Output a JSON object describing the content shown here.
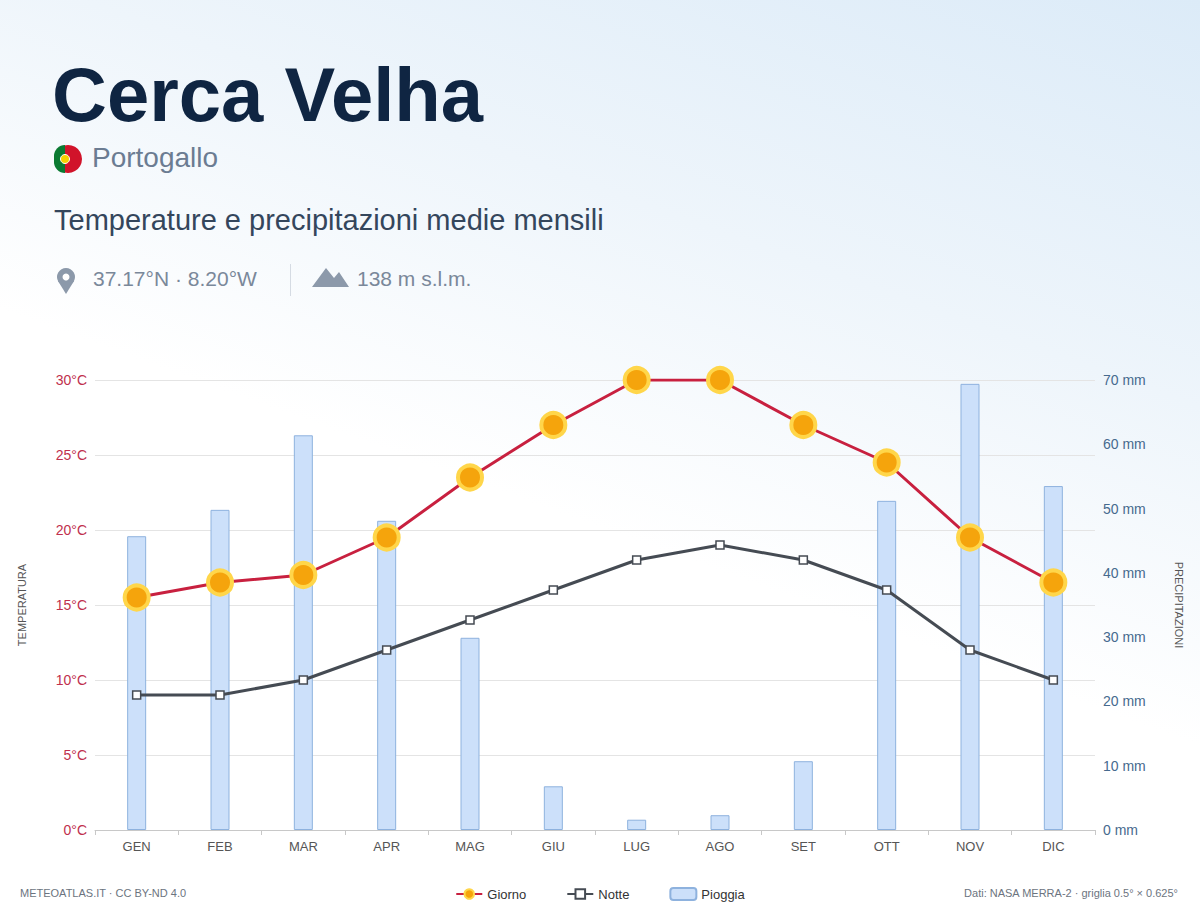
{
  "chart_data": {
    "type": "bar",
    "title": "Cerca Velha",
    "subtitle": "Portogallo",
    "annotations": [
      "Temperature e precipitazioni medie mensili",
      "37.17°N · 8.20°W",
      "138 m s.l.m.",
      "METEOATLAS.IT · CC BY-ND 4.0",
      "Dati: NASA MERRA-2 · griglia 0.5° × 0.625°"
    ],
    "ylabel": "TEMPERATURA",
    "y2label": "PRECIPITAZIONI",
    "categories": [
      "GEN",
      "FEB",
      "MAR",
      "APR",
      "MAG",
      "GIU",
      "LUG",
      "AGO",
      "SET",
      "OTT",
      "NOV",
      "DIC"
    ],
    "series": [
      {
        "name": "Giorno",
        "type": "line",
        "color": "#c8203f",
        "marker": "sun",
        "line_style": "solid",
        "values": [
          15.5,
          16.5,
          17,
          19.5,
          23.5,
          27,
          30,
          30,
          27,
          24.5,
          19.5,
          16.5
        ]
      },
      {
        "name": "Notte",
        "type": "line",
        "color": "#454b53",
        "marker": "square",
        "line_style": "solid",
        "values": [
          9,
          9,
          10,
          12,
          14,
          16,
          18,
          19,
          18,
          16,
          12,
          10
        ]
      },
      {
        "name": "Pioggia",
        "type": "bar",
        "color": "#cce0fa",
        "axis": "y2",
        "values": [
          45.7,
          49.8,
          61.4,
          48.1,
          29.9,
          6.8,
          1.6,
          2.3,
          10.7,
          51.2,
          69.4,
          53.5
        ]
      }
    ],
    "ylim": [
      0,
      30
    ],
    "yticks": [
      {
        "value": 0,
        "label": "0°C"
      },
      {
        "value": 5,
        "label": "5°C"
      },
      {
        "value": 10,
        "label": "10°C"
      },
      {
        "value": 15,
        "label": "15°C"
      },
      {
        "value": 20,
        "label": "20°C"
      },
      {
        "value": 25,
        "label": "25°C"
      },
      {
        "value": 30,
        "label": "30°C"
      }
    ],
    "y2lim": [
      0,
      70
    ],
    "y2ticks": [
      {
        "value": 0,
        "label": "0 mm"
      },
      {
        "value": 10,
        "label": "10 mm"
      },
      {
        "value": 20,
        "label": "20 mm"
      },
      {
        "value": 30,
        "label": "30 mm"
      },
      {
        "value": 40,
        "label": "40 mm"
      },
      {
        "value": 50,
        "label": "50 mm"
      },
      {
        "value": 60,
        "label": "60 mm"
      },
      {
        "value": 70,
        "label": "70 mm"
      }
    ],
    "grid": true,
    "legend": "bottom"
  }
}
